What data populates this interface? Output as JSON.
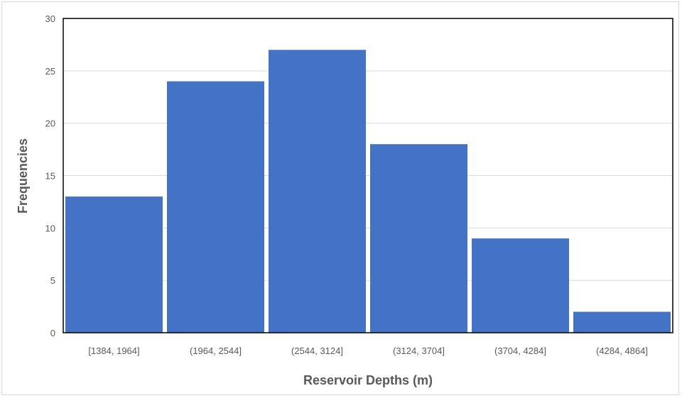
{
  "chart_data": {
    "type": "bar",
    "title": "",
    "xlabel": "Reservoir Depths (m)",
    "ylabel": "Frequencies",
    "categories": [
      "[1384, 1964]",
      "(1964, 2544]",
      "(2544, 3124]",
      "(3124, 3704]",
      "(3704, 4284]",
      "(4284, 4864]"
    ],
    "values": [
      13,
      24,
      27,
      18,
      9,
      2
    ],
    "ylim": [
      0,
      30
    ],
    "yticks": [
      "0",
      "5",
      "10",
      "15",
      "20",
      "25",
      "30"
    ],
    "grid": true,
    "legend": "none",
    "bar_color": "#4472c4"
  }
}
